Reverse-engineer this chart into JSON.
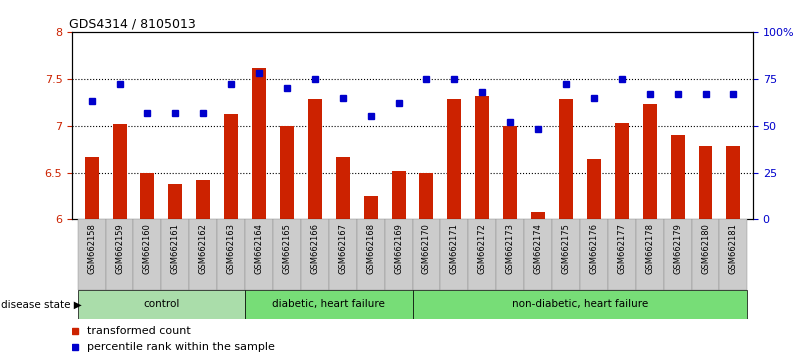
{
  "title": "GDS4314 / 8105013",
  "samples": [
    "GSM662158",
    "GSM662159",
    "GSM662160",
    "GSM662161",
    "GSM662162",
    "GSM662163",
    "GSM662164",
    "GSM662165",
    "GSM662166",
    "GSM662167",
    "GSM662168",
    "GSM662169",
    "GSM662170",
    "GSM662171",
    "GSM662172",
    "GSM662173",
    "GSM662174",
    "GSM662175",
    "GSM662176",
    "GSM662177",
    "GSM662178",
    "GSM662179",
    "GSM662180",
    "GSM662181"
  ],
  "transformed_count": [
    6.67,
    7.02,
    6.5,
    6.38,
    6.42,
    7.12,
    7.62,
    7.0,
    7.28,
    6.67,
    6.25,
    6.52,
    6.5,
    7.28,
    7.32,
    7.0,
    6.08,
    7.28,
    6.65,
    7.03,
    7.23,
    6.9,
    6.78,
    6.78
  ],
  "percentile_rank": [
    63,
    72,
    57,
    57,
    57,
    72,
    78,
    70,
    75,
    65,
    55,
    62,
    75,
    75,
    68,
    52,
    48,
    72,
    65,
    75,
    67,
    67,
    67,
    67
  ],
  "ylim_left": [
    6.0,
    8.0
  ],
  "ylim_right": [
    0,
    100
  ],
  "yticks_left": [
    6.0,
    6.5,
    7.0,
    7.5,
    8.0
  ],
  "ytick_labels_left": [
    "6",
    "6.5",
    "7",
    "7.5",
    "8"
  ],
  "yticks_right": [
    0,
    25,
    50,
    75,
    100
  ],
  "ytick_labels_right": [
    "0",
    "25",
    "50",
    "75",
    "100%"
  ],
  "hlines": [
    6.5,
    7.0,
    7.5
  ],
  "bar_color": "#cc2200",
  "dot_color": "#0000cc",
  "bg_color": "#cccccc",
  "group_color_control": "#aaddaa",
  "group_color_other": "#77dd77",
  "group_spans": [
    {
      "xstart": -0.5,
      "xend": 5.5,
      "color": "#aaddaa",
      "label": "control"
    },
    {
      "xstart": 5.5,
      "xend": 11.5,
      "color": "#77dd77",
      "label": "diabetic, heart failure"
    },
    {
      "xstart": 11.5,
      "xend": 23.5,
      "color": "#77dd77",
      "label": "non-diabetic, heart failure"
    }
  ],
  "legend_bar_label": "transformed count",
  "legend_dot_label": "percentile rank within the sample",
  "disease_state_label": "disease state"
}
